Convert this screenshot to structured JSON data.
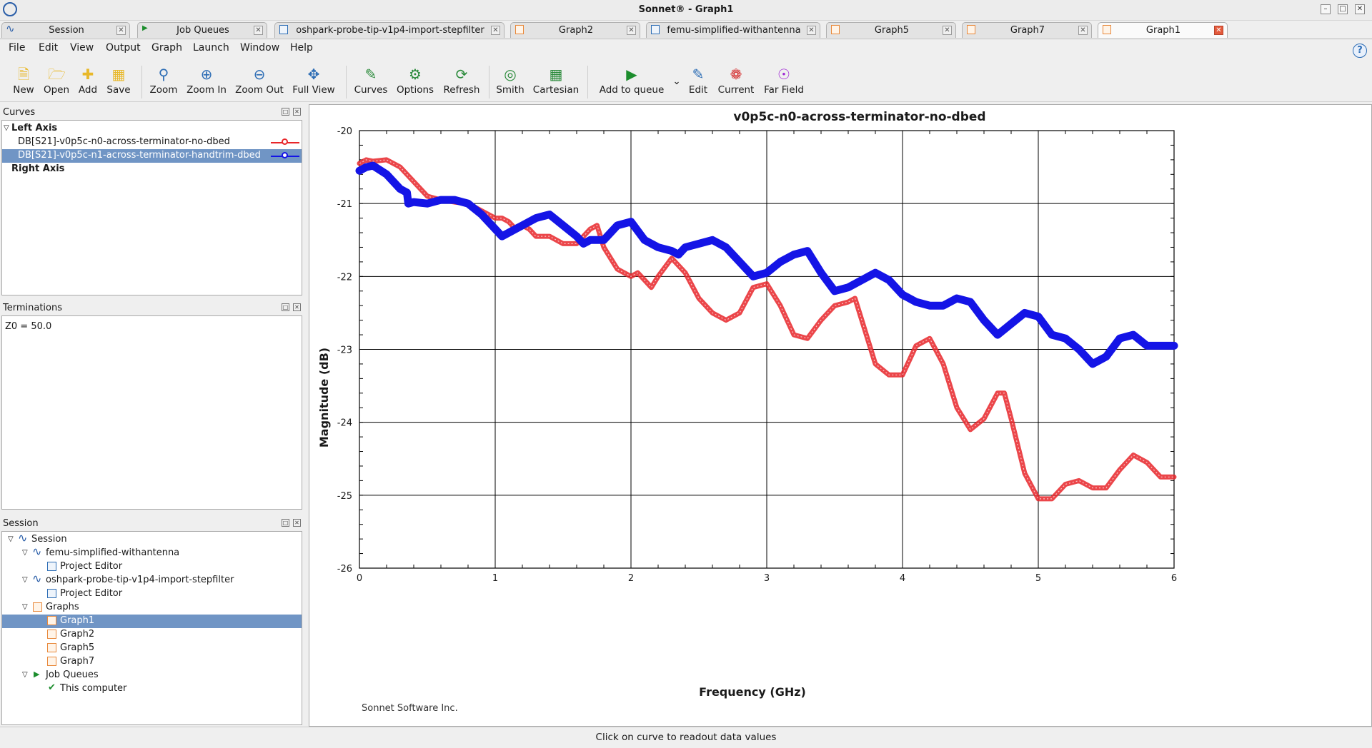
{
  "window": {
    "title": "Sonnet® - Graph1"
  },
  "tabs": [
    {
      "label": "Session",
      "icon": "session-icon"
    },
    {
      "label": "Job Queues",
      "icon": "job-queue-icon"
    },
    {
      "label": "oshpark-probe-tip-v1p4-import-stepfilter",
      "icon": "project-icon"
    },
    {
      "label": "Graph2",
      "icon": "graph-icon"
    },
    {
      "label": "femu-simplified-withantenna",
      "icon": "project-icon"
    },
    {
      "label": "Graph5",
      "icon": "graph-icon"
    },
    {
      "label": "Graph7",
      "icon": "graph-icon"
    },
    {
      "label": "Graph1",
      "icon": "graph-icon",
      "active": true
    }
  ],
  "menu": [
    "File",
    "Edit",
    "View",
    "Output",
    "Graph",
    "Launch",
    "Window",
    "Help"
  ],
  "toolbar": [
    {
      "label": "New",
      "icon": "new-file-icon"
    },
    {
      "label": "Open",
      "icon": "open-folder-icon"
    },
    {
      "label": "Add",
      "icon": "add-folder-icon"
    },
    {
      "label": "Save",
      "icon": "save-icon"
    },
    {
      "label": "Zoom",
      "icon": "zoom-icon"
    },
    {
      "label": "Zoom In",
      "icon": "zoom-in-icon"
    },
    {
      "label": "Zoom Out",
      "icon": "zoom-out-icon"
    },
    {
      "label": "Full View",
      "icon": "full-view-icon"
    },
    {
      "label": "Curves",
      "icon": "curves-icon"
    },
    {
      "label": "Options",
      "icon": "options-icon"
    },
    {
      "label": "Refresh",
      "icon": "refresh-icon"
    },
    {
      "label": "Smith",
      "icon": "smith-chart-icon"
    },
    {
      "label": "Cartesian",
      "icon": "cartesian-icon"
    },
    {
      "label": "Add to queue",
      "icon": "add-to-queue-icon"
    },
    {
      "label": "Edit",
      "icon": "edit-icon"
    },
    {
      "label": "Current",
      "icon": "current-icon"
    },
    {
      "label": "Far Field",
      "icon": "far-field-icon"
    }
  ],
  "curves_panel": {
    "title": "Curves",
    "left_axis": "Left Axis",
    "right_axis": "Right Axis",
    "items": [
      {
        "label": "DB[S21]-v0p5c-n0-across-terminator-no-dbed",
        "color": "#e8262a"
      },
      {
        "label": "DB[S21]-v0p5c-n1-across-terminator-handtrim-dbed",
        "color": "#1414e6"
      }
    ]
  },
  "terminations_panel": {
    "title": "Terminations",
    "text": "Z0 = 50.0"
  },
  "session_panel": {
    "title": "Session",
    "tree": [
      {
        "label": "Session",
        "level": 0,
        "icon": "session-icon",
        "expand": true
      },
      {
        "label": "femu-simplified-withantenna",
        "level": 1,
        "icon": "session-icon",
        "expand": true
      },
      {
        "label": "Project Editor",
        "level": 2,
        "icon": "project-editor-icon"
      },
      {
        "label": "oshpark-probe-tip-v1p4-import-stepfilter",
        "level": 1,
        "icon": "session-icon",
        "expand": true
      },
      {
        "label": "Project Editor",
        "level": 2,
        "icon": "project-editor-icon"
      },
      {
        "label": "Graphs",
        "level": 1,
        "icon": "graph-folder-icon",
        "expand": true
      },
      {
        "label": "Graph1",
        "level": 2,
        "icon": "graph-icon",
        "selected": true
      },
      {
        "label": "Graph2",
        "level": 2,
        "icon": "graph-icon"
      },
      {
        "label": "Graph5",
        "level": 2,
        "icon": "graph-icon"
      },
      {
        "label": "Graph7",
        "level": 2,
        "icon": "graph-icon"
      },
      {
        "label": "Job Queues",
        "level": 1,
        "icon": "job-queue-icon",
        "expand": true
      },
      {
        "label": "This computer",
        "level": 2,
        "icon": "check-icon"
      }
    ]
  },
  "graph": {
    "footer": "Sonnet Software Inc."
  },
  "chart_data": {
    "type": "line",
    "title": "v0p5c-n0-across-terminator-no-dbed",
    "xlabel": "Frequency (GHz)",
    "ylabel": "Magnitude (dB)",
    "xlim": [
      0,
      6
    ],
    "ylim": [
      -26,
      -20
    ],
    "xticks": [
      "0",
      "1",
      "2",
      "3",
      "4",
      "5",
      "6"
    ],
    "yticks": [
      "-20",
      "-21",
      "-22",
      "-23",
      "-24",
      "-25",
      "-26"
    ],
    "grid": true,
    "series": [
      {
        "color": "#e8262a",
        "x": [
          0,
          0.05,
          0.1,
          0.2,
          0.3,
          0.4,
          0.5,
          0.6,
          0.7,
          0.8,
          0.9,
          1.0,
          1.05,
          1.1,
          1.15,
          1.2,
          1.25,
          1.3,
          1.4,
          1.5,
          1.6,
          1.7,
          1.75,
          1.8,
          1.9,
          2.0,
          2.05,
          2.1,
          2.15,
          2.2,
          2.3,
          2.4,
          2.5,
          2.6,
          2.7,
          2.8,
          2.9,
          3.0,
          3.1,
          3.2,
          3.3,
          3.4,
          3.5,
          3.6,
          3.65,
          3.7,
          3.8,
          3.9,
          4.0,
          4.1,
          4.2,
          4.3,
          4.4,
          4.5,
          4.6,
          4.7,
          4.75,
          4.8,
          4.9,
          5.0,
          5.1,
          5.2,
          5.3,
          5.4,
          5.5,
          5.6,
          5.7,
          5.8,
          5.9,
          6.0
        ],
        "values": [
          -20.45,
          -20.4,
          -20.42,
          -20.4,
          -20.5,
          -20.7,
          -20.9,
          -20.95,
          -20.98,
          -21.0,
          -21.1,
          -21.2,
          -21.2,
          -21.25,
          -21.35,
          -21.3,
          -21.35,
          -21.45,
          -21.45,
          -21.55,
          -21.55,
          -21.35,
          -21.3,
          -21.6,
          -21.9,
          -22.0,
          -21.95,
          -22.05,
          -22.15,
          -22.0,
          -21.75,
          -21.95,
          -22.3,
          -22.5,
          -22.6,
          -22.5,
          -22.15,
          -22.1,
          -22.4,
          -22.8,
          -22.85,
          -22.6,
          -22.4,
          -22.35,
          -22.3,
          -22.6,
          -23.2,
          -23.35,
          -23.35,
          -22.95,
          -22.85,
          -23.2,
          -23.8,
          -24.1,
          -23.95,
          -23.6,
          -23.6,
          -23.95,
          -24.7,
          -25.05,
          -25.05,
          -24.85,
          -24.8,
          -24.9,
          -24.9,
          -24.65,
          -24.45,
          -24.55,
          -24.75,
          -24.75
        ]
      },
      {
        "color": "#1414e6",
        "x": [
          0,
          0.05,
          0.1,
          0.2,
          0.3,
          0.35,
          0.36,
          0.4,
          0.5,
          0.6,
          0.7,
          0.8,
          0.9,
          1.0,
          1.05,
          1.1,
          1.15,
          1.2,
          1.3,
          1.4,
          1.5,
          1.6,
          1.65,
          1.7,
          1.8,
          1.9,
          2.0,
          2.1,
          2.2,
          2.3,
          2.35,
          2.4,
          2.5,
          2.6,
          2.7,
          2.8,
          2.9,
          3.0,
          3.1,
          3.2,
          3.3,
          3.4,
          3.5,
          3.6,
          3.7,
          3.8,
          3.9,
          4.0,
          4.1,
          4.2,
          4.3,
          4.4,
          4.5,
          4.6,
          4.7,
          4.8,
          4.9,
          5.0,
          5.1,
          5.2,
          5.3,
          5.4,
          5.5,
          5.6,
          5.7,
          5.8,
          5.9,
          6.0
        ],
        "values": [
          -20.55,
          -20.5,
          -20.48,
          -20.6,
          -20.8,
          -20.85,
          -21.0,
          -20.98,
          -21.0,
          -20.95,
          -20.95,
          -21.0,
          -21.15,
          -21.35,
          -21.45,
          -21.4,
          -21.35,
          -21.3,
          -21.2,
          -21.15,
          -21.3,
          -21.45,
          -21.55,
          -21.5,
          -21.5,
          -21.3,
          -21.25,
          -21.5,
          -21.6,
          -21.65,
          -21.7,
          -21.6,
          -21.55,
          -21.5,
          -21.6,
          -21.8,
          -22.0,
          -21.95,
          -21.8,
          -21.7,
          -21.65,
          -21.95,
          -22.2,
          -22.15,
          -22.05,
          -21.95,
          -22.05,
          -22.25,
          -22.35,
          -22.4,
          -22.4,
          -22.3,
          -22.35,
          -22.6,
          -22.8,
          -22.65,
          -22.5,
          -22.55,
          -22.8,
          -22.85,
          -23.0,
          -23.2,
          -23.1,
          -22.85,
          -22.8,
          -22.95,
          -22.95,
          -22.95
        ]
      }
    ]
  },
  "status": "Click on curve to readout data values"
}
